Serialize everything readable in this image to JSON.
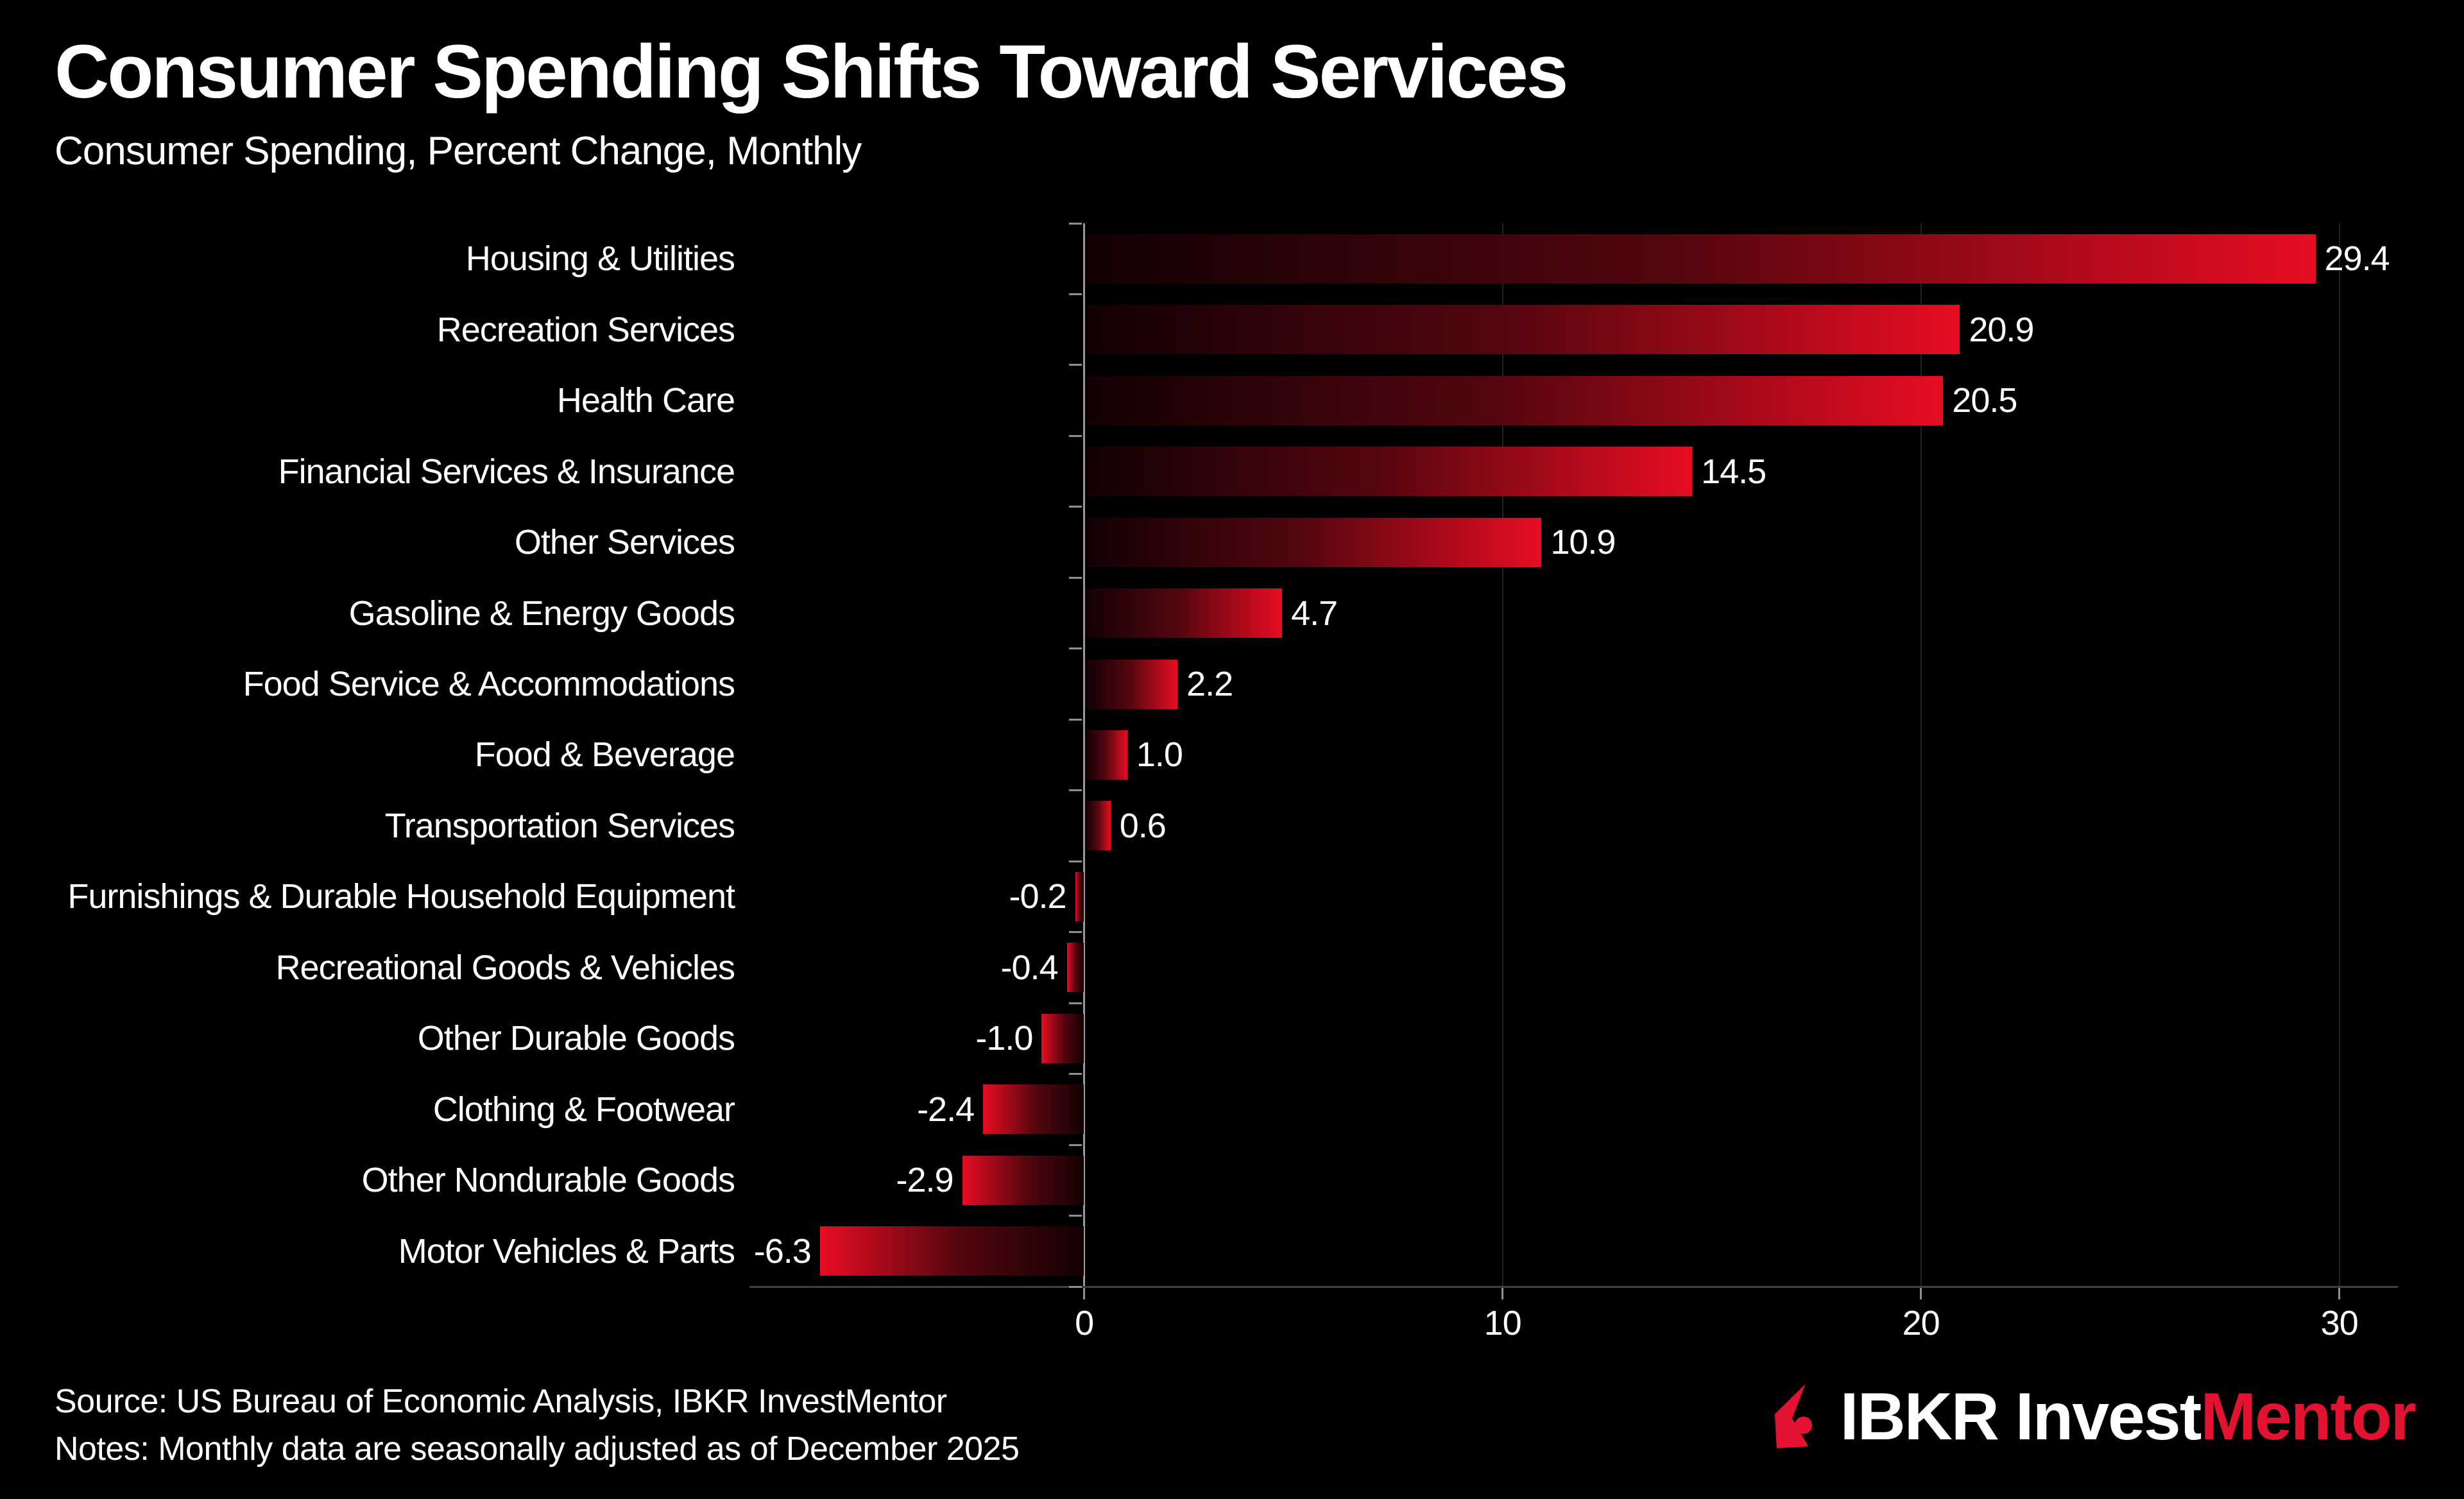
{
  "header": {
    "title": "Consumer Spending Shifts Toward Services",
    "subtitle": "Consumer Spending, Percent Change, Monthly"
  },
  "chart_data": {
    "type": "bar",
    "orientation": "horizontal",
    "title": "Consumer Spending Shifts Toward Services",
    "subtitle": "Consumer Spending, Percent Change, Monthly",
    "xlabel": "",
    "ylabel": "",
    "categories": [
      "Housing & Utilities",
      "Recreation Services",
      "Health Care",
      "Financial Services & Insurance",
      "Other Services",
      "Gasoline & Energy Goods",
      "Food Service & Accommodations",
      "Food & Beverage",
      "Transportation Services",
      "Furnishings & Durable Household Equipment",
      "Recreational Goods & Vehicles",
      "Other Durable Goods",
      "Clothing & Footwear",
      "Other Nondurable Goods",
      "Motor Vehicles & Parts"
    ],
    "values": [
      29.4,
      20.9,
      20.5,
      14.5,
      10.9,
      4.7,
      2.2,
      1.0,
      0.6,
      -0.2,
      -0.4,
      -1.0,
      -2.4,
      -2.9,
      -6.3
    ],
    "value_labels": [
      "29.4",
      "20.9",
      "20.5",
      "14.5",
      "10.9",
      "4.7",
      "2.2",
      "1.0",
      "0.6",
      "-0.2",
      "-0.4",
      "-1.0",
      "-2.4",
      "-2.9",
      "-6.3"
    ],
    "xlim": [
      -8,
      31.4
    ],
    "x_ticks": [
      0,
      10,
      20,
      30
    ],
    "x_tick_labels": [
      "0",
      "10",
      "20",
      "30"
    ],
    "grid": "faint vertical gridlines at 10, 20, 30; light zero line; dark bottom axis",
    "legend": "none",
    "bar_style": "gradient from near-black at zero end to bright red at value end"
  },
  "footer": {
    "source": "Source: US Bureau of Economic Analysis, IBKR InvestMentor",
    "notes": "Notes: Monthly data are seasonally adjusted as of December 2025"
  },
  "logo": {
    "icon": "ibkr-flame-icon",
    "brand_white": "IBKR Invest",
    "brand_red": "Mentor"
  },
  "colors": {
    "background": "#000000",
    "bar_red": "#e70d22",
    "bar_dark": "#120103",
    "logo_red": "#e31230",
    "axis_line": "#3e3e3e",
    "zero_line": "#9a9a9a",
    "grid_line": "#242424",
    "tick_mark": "#8f8f8f",
    "text": "#ffffff"
  }
}
